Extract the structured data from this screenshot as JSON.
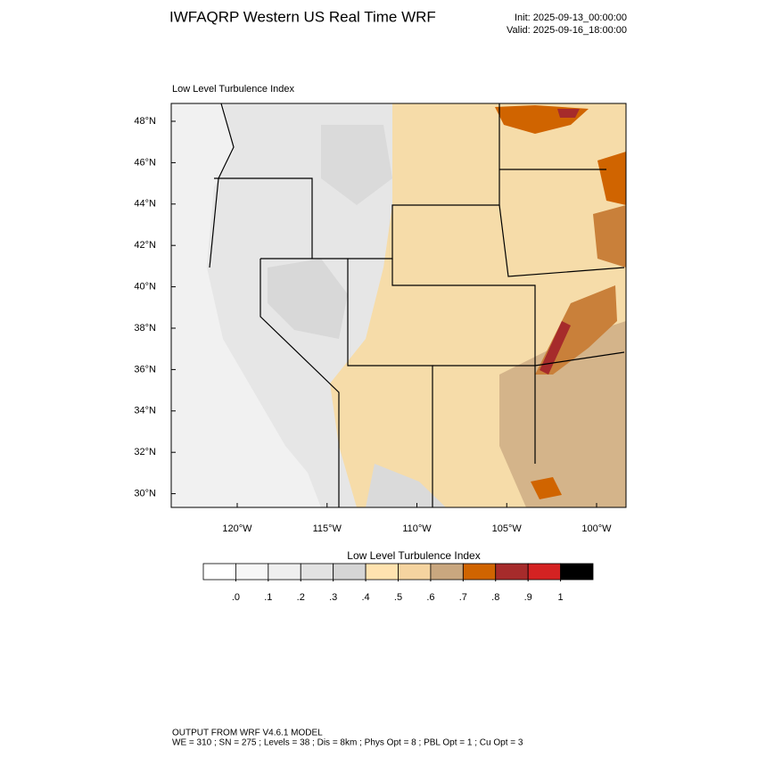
{
  "header": {
    "title": "IWFAQRP Western US Real Time WRF",
    "init": "Init: 2025-09-13_00:00:00",
    "valid": "Valid: 2025-09-16_18:00:00"
  },
  "map": {
    "title": "Low Level Turbulence Index",
    "lat_ticks": [
      {
        "value": 48,
        "label": "48°N"
      },
      {
        "value": 46,
        "label": "46°N"
      },
      {
        "value": 44,
        "label": "44°N"
      },
      {
        "value": 42,
        "label": "42°N"
      },
      {
        "value": 40,
        "label": "40°N"
      },
      {
        "value": 38,
        "label": "38°N"
      },
      {
        "value": 36,
        "label": "36°N"
      },
      {
        "value": 34,
        "label": "34°N"
      },
      {
        "value": 32,
        "label": "32°N"
      },
      {
        "value": 30,
        "label": "30°N"
      }
    ],
    "lon_ticks": [
      {
        "value": -120,
        "label": "120°W"
      },
      {
        "value": -115,
        "label": "115°W"
      },
      {
        "value": -110,
        "label": "110°W"
      },
      {
        "value": -105,
        "label": "105°W"
      },
      {
        "value": -100,
        "label": "100°W"
      }
    ]
  },
  "colorbar": {
    "title": "Low Level Turbulence Index",
    "colors": [
      "#ffffff",
      "#f7f7f7",
      "#efefef",
      "#e2e2e2",
      "#d5d5d5",
      "#ffe3b0",
      "#f5d4a0",
      "#c9a77f",
      "#d06400",
      "#a62b2b",
      "#d42222",
      "#000000"
    ],
    "ticks": [
      {
        "value": 0,
        "label": ".0"
      },
      {
        "value": 0.1,
        "label": ".1"
      },
      {
        "value": 0.2,
        "label": ".2"
      },
      {
        "value": 0.3,
        "label": ".3"
      },
      {
        "value": 0.4,
        "label": ".4"
      },
      {
        "value": 0.5,
        "label": ".5"
      },
      {
        "value": 0.6,
        "label": ".6"
      },
      {
        "value": 0.7,
        "label": ".7"
      },
      {
        "value": 0.8,
        "label": ".8"
      },
      {
        "value": 0.9,
        "label": ".9"
      },
      1
    ]
  },
  "footer": {
    "lines": [
      "OUTPUT FROM WRF V4.6.1 MODEL",
      "WE = 310 ; SN = 275 ; Levels = 38 ; Dis = 8km ; Phys Opt = 8 ; PBL Opt = 1 ; Cu Opt = 3"
    ]
  }
}
